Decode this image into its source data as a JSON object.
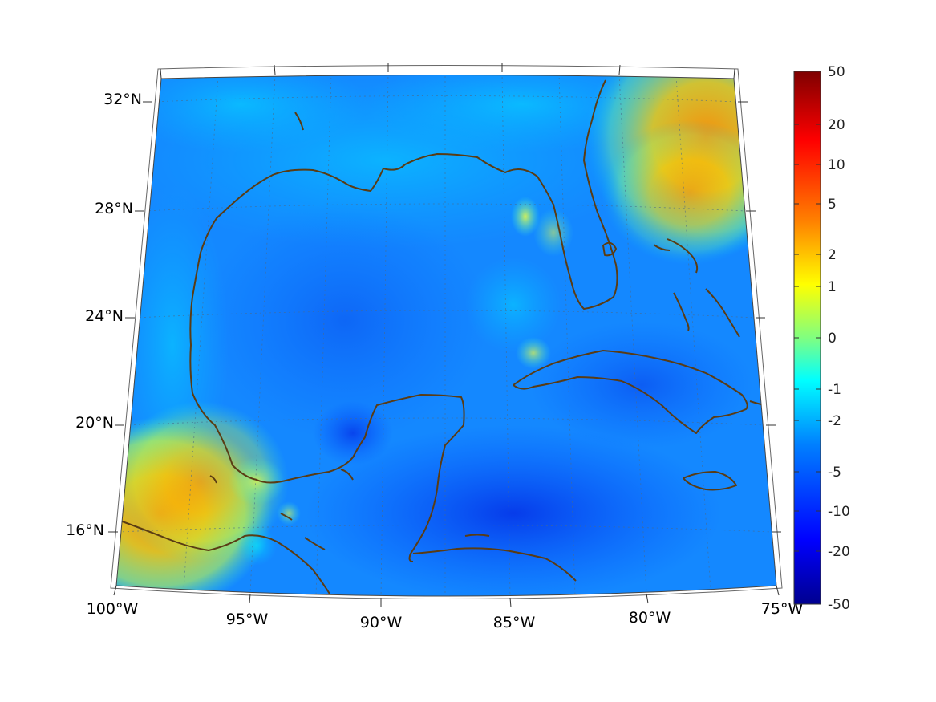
{
  "map": {
    "lon_labels": [
      "100°W",
      "95°W",
      "90°W",
      "85°W",
      "80°W",
      "75°W"
    ],
    "lat_labels": [
      "32°N",
      "28°N",
      "24°N",
      "20°N",
      "16°N"
    ],
    "extent": {
      "lon_min": -100,
      "lon_max": -75,
      "lat_min": 14,
      "lat_max": 33
    },
    "projection": "conic",
    "grid": true,
    "coastline_color": "#5a3c14",
    "field_hotspots": [
      {
        "name": "atlantic-northeast",
        "level": "4"
      },
      {
        "name": "mexico-southwest",
        "level": "3"
      },
      {
        "name": "yucatan-channel",
        "level": "-12"
      }
    ]
  },
  "colorbar": {
    "colormap": "jet",
    "tick_labels": [
      "50",
      "20",
      "10",
      "5",
      "2",
      "1",
      "0",
      "-1",
      "-2",
      "-5",
      "-10",
      "-20",
      "-50"
    ],
    "colors": [
      "#7f0000",
      "#ff0000",
      "#ff8000",
      "#ffff00",
      "#80ff80",
      "#00ffff",
      "#0080ff",
      "#0000ff",
      "#00008f"
    ]
  }
}
